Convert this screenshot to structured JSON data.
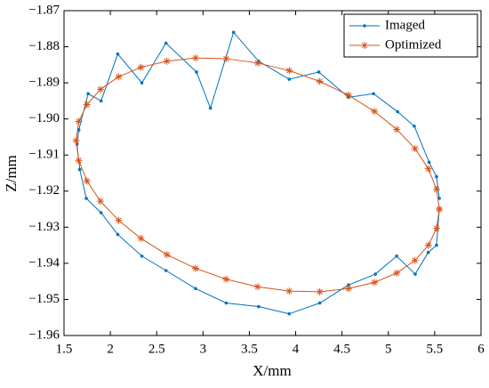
{
  "chart_data": {
    "type": "line",
    "xlabel": "X/mm",
    "ylabel": "Z/mm",
    "xlim": [
      1.5,
      6
    ],
    "xticks": [
      1.5,
      2,
      2.5,
      3,
      3.5,
      4,
      4.5,
      5,
      5.5,
      6
    ],
    "ylim": [
      -1.96,
      -1.87
    ],
    "yticks": [
      {
        "value": -1.96,
        "label": "−1.96"
      },
      {
        "value": -1.95,
        "label": "−1.95"
      },
      {
        "value": -1.94,
        "label": "−1.94"
      },
      {
        "value": -1.93,
        "label": "−1.93"
      },
      {
        "value": -1.92,
        "label": "−1.92"
      },
      {
        "value": -1.91,
        "label": "−1.91"
      },
      {
        "value": -1.9,
        "label": "−1.90"
      },
      {
        "value": -1.89,
        "label": "−1.89"
      },
      {
        "value": -1.88,
        "label": "−1.88"
      },
      {
        "value": -1.87,
        "label": "−1.87"
      }
    ],
    "legend": "upper right",
    "series": [
      {
        "name": "Imaged",
        "color": "#0072bd",
        "marker": "dot",
        "x": [
          5.55,
          5.52,
          5.44,
          5.28,
          5.1,
          4.84,
          4.57,
          4.25,
          3.93,
          3.6,
          3.33,
          3.08,
          2.93,
          2.6,
          2.34,
          2.08,
          1.9,
          1.76,
          1.66,
          1.64,
          1.67,
          1.74,
          1.9,
          2.08,
          2.34,
          2.6,
          2.92,
          3.25,
          3.6,
          3.93,
          4.26,
          4.57,
          4.86,
          5.09,
          5.29,
          5.43,
          5.52,
          5.55
        ],
        "y": [
          -1.922,
          -1.916,
          -1.912,
          -1.902,
          -1.898,
          -1.893,
          -1.894,
          -1.887,
          -1.889,
          -1.884,
          -1.876,
          -1.897,
          -1.887,
          -1.879,
          -1.89,
          -1.882,
          -1.895,
          -1.893,
          -1.903,
          -1.907,
          -1.914,
          -1.922,
          -1.926,
          -1.932,
          -1.938,
          -1.942,
          -1.947,
          -1.951,
          -1.952,
          -1.954,
          -1.951,
          -1.946,
          -1.943,
          -1.938,
          -1.943,
          -1.937,
          -1.935,
          -1.925
        ]
      },
      {
        "name": "Optimized",
        "color": "#d95319",
        "marker": "asterisk",
        "x": [
          5.55,
          5.521,
          5.432,
          5.287,
          5.091,
          4.85,
          4.57,
          4.26,
          3.931,
          3.59,
          3.249,
          2.92,
          2.61,
          2.33,
          2.089,
          1.893,
          1.748,
          1.659,
          1.63,
          1.659,
          1.748,
          1.893,
          2.089,
          2.33,
          2.61,
          2.92,
          3.249,
          3.59,
          3.931,
          4.26,
          4.57,
          4.85,
          5.091,
          5.287,
          5.432,
          5.521,
          5.55
        ],
        "y": [
          -1.925,
          -1.9195,
          -1.9138,
          -1.9082,
          -1.9029,
          -1.8979,
          -1.8934,
          -1.8896,
          -1.8866,
          -1.8845,
          -1.8833,
          -1.8831,
          -1.884,
          -1.8857,
          -1.8883,
          -1.8918,
          -1.896,
          -1.9007,
          -1.906,
          -1.9115,
          -1.9172,
          -1.9228,
          -1.9281,
          -1.9331,
          -1.9376,
          -1.9414,
          -1.9444,
          -1.9465,
          -1.9477,
          -1.9479,
          -1.947,
          -1.9453,
          -1.9427,
          -1.9392,
          -1.935,
          -1.9303,
          -1.925
        ]
      }
    ]
  }
}
